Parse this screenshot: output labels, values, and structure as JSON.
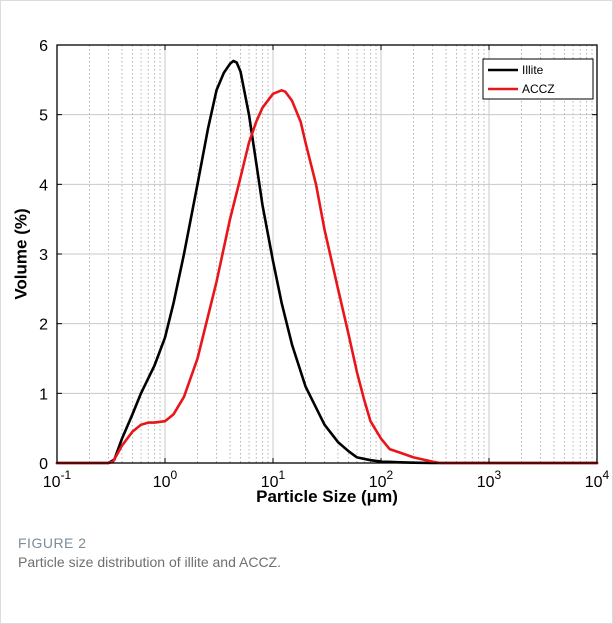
{
  "figure": {
    "label": "FIGURE 2",
    "caption": "Particle size distribution of illite and ACCZ."
  },
  "colors": {
    "illite": "#000000",
    "accz": "#e8161b",
    "grid_major": "#c8c8c8",
    "grid_minor": "#b4b4b4"
  },
  "chart_data": {
    "type": "line",
    "title": "",
    "xlabel": "Particle Size (μm)",
    "ylabel": "Volume (%)",
    "xscale": "log",
    "xlim": [
      0.1,
      10000
    ],
    "ylim": [
      0,
      6
    ],
    "xticks": [
      0.1,
      1,
      10,
      100,
      1000,
      10000
    ],
    "xtick_labels": [
      {
        "base": "10",
        "exp": "-1"
      },
      {
        "base": "10",
        "exp": "0"
      },
      {
        "base": "10",
        "exp": "1"
      },
      {
        "base": "10",
        "exp": "2"
      },
      {
        "base": "10",
        "exp": "3"
      },
      {
        "base": "10",
        "exp": "4"
      }
    ],
    "yticks": [
      0,
      1,
      2,
      3,
      4,
      5,
      6
    ],
    "grid": true,
    "legend_position": "top-right",
    "series": [
      {
        "name": "Illite",
        "color": "#000000",
        "x": [
          0.1,
          0.3,
          0.34,
          0.4,
          0.5,
          0.6,
          0.8,
          1.0,
          1.2,
          1.5,
          2.0,
          2.5,
          3.0,
          3.5,
          4.0,
          4.3,
          4.6,
          5.0,
          6.0,
          7.0,
          8.0,
          10.0,
          12.0,
          15.0,
          20.0,
          30.0,
          40.0,
          50.0,
          60.0,
          80.0,
          100.0,
          150.0,
          200.0,
          300.0,
          10000.0
        ],
        "y": [
          0,
          0,
          0.05,
          0.35,
          0.7,
          1.0,
          1.4,
          1.8,
          2.3,
          3.0,
          4.0,
          4.8,
          5.35,
          5.6,
          5.73,
          5.77,
          5.75,
          5.62,
          5.0,
          4.3,
          3.7,
          2.9,
          2.3,
          1.7,
          1.1,
          0.55,
          0.3,
          0.17,
          0.08,
          0.04,
          0.02,
          0.01,
          0.005,
          0,
          0
        ]
      },
      {
        "name": "ACCZ",
        "color": "#e8161b",
        "x": [
          0.1,
          0.3,
          0.33,
          0.4,
          0.5,
          0.6,
          0.7,
          0.8,
          1.0,
          1.2,
          1.5,
          2.0,
          3.0,
          4.0,
          5.0,
          6.0,
          7.0,
          8.0,
          10.0,
          12.0,
          13.0,
          15.0,
          18.0,
          20.0,
          25.0,
          30.0,
          40.0,
          50.0,
          60.0,
          70.0,
          80.0,
          100.0,
          120.0,
          150.0,
          200.0,
          300.0,
          350.0,
          10000.0
        ],
        "y": [
          0,
          0,
          0.02,
          0.25,
          0.45,
          0.55,
          0.58,
          0.58,
          0.6,
          0.7,
          0.95,
          1.5,
          2.6,
          3.5,
          4.1,
          4.6,
          4.9,
          5.1,
          5.3,
          5.35,
          5.33,
          5.2,
          4.9,
          4.6,
          4.0,
          3.35,
          2.5,
          1.85,
          1.3,
          0.9,
          0.6,
          0.35,
          0.2,
          0.15,
          0.08,
          0.02,
          0,
          0
        ]
      }
    ]
  }
}
